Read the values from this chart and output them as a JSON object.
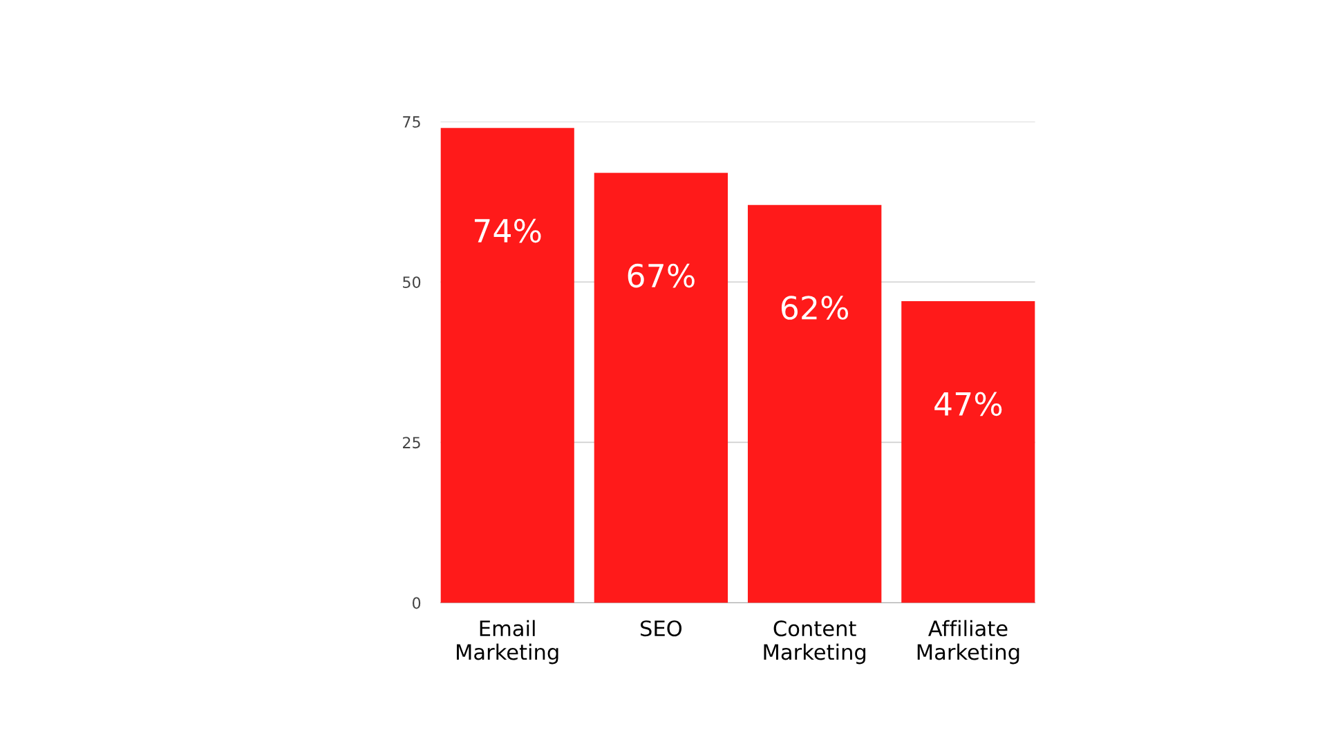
{
  "chart_data": {
    "type": "bar",
    "categories": [
      "Email\nMarketing",
      "SEO",
      "Content\nMarketing",
      "Affiliate\nMarketing"
    ],
    "values": [
      74,
      67,
      62,
      47
    ],
    "color": "#ff1a1a",
    "value_labels": [
      "74%",
      "67%",
      "62%",
      "47%"
    ],
    "ylim": [
      0,
      75
    ],
    "yticks": [
      0,
      25,
      50,
      75
    ],
    "grid": "y"
  }
}
